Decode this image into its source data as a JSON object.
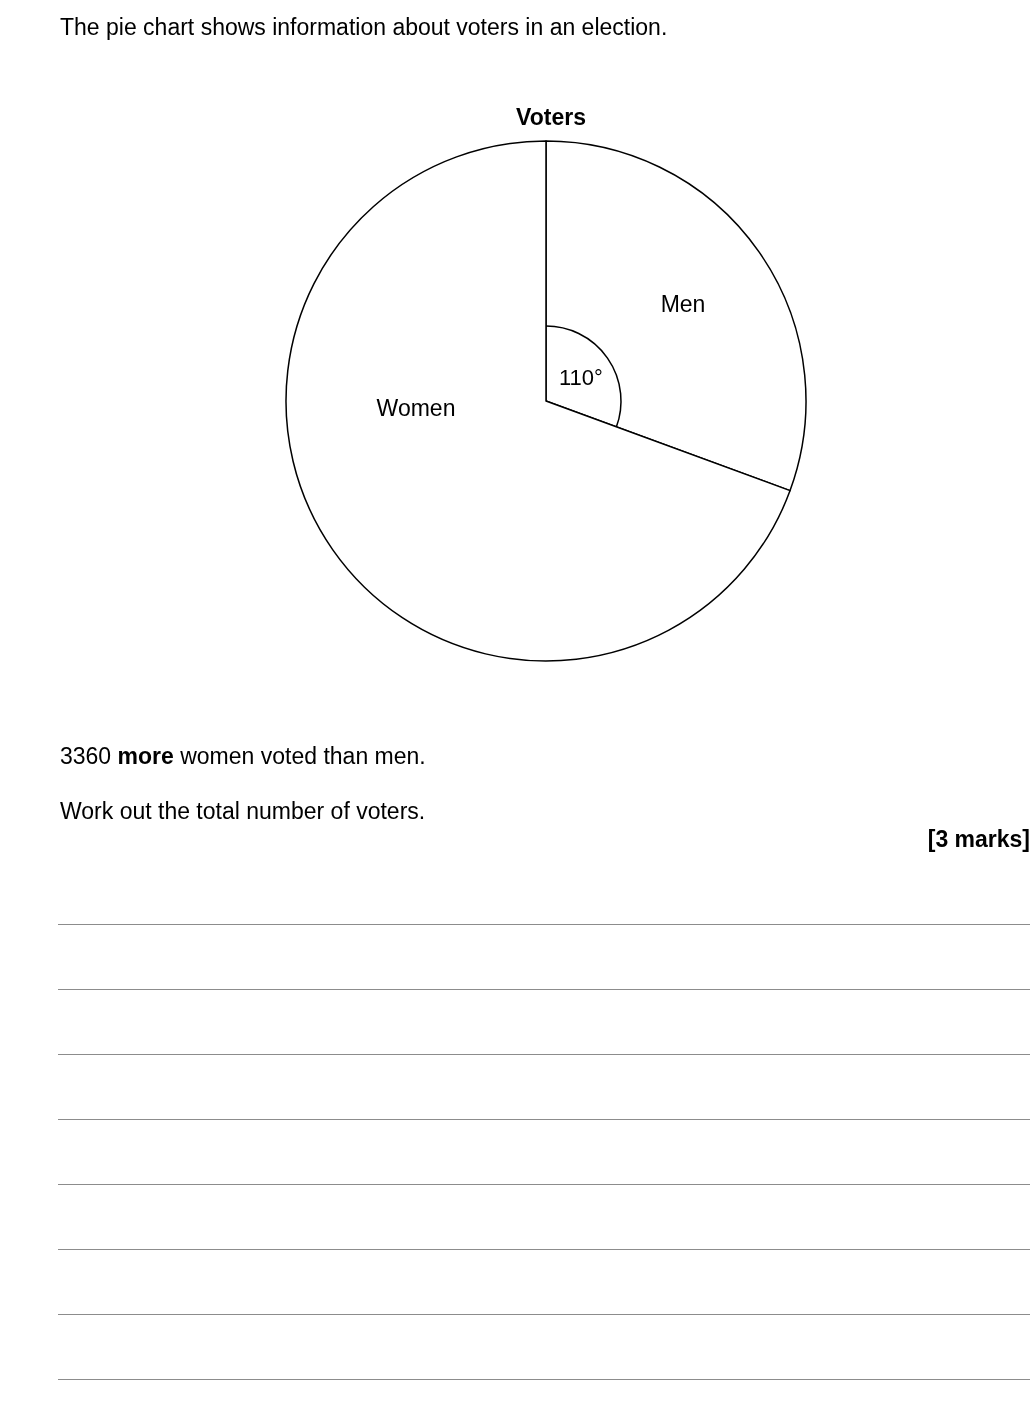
{
  "chart_data": {
    "type": "pie",
    "title": "Voters",
    "subtitle": "The pie chart shows information about voters in an election.",
    "categories": [
      "Men",
      "Women"
    ],
    "values": [
      30.6,
      69.4
    ],
    "colors": [
      "#ffffff",
      "#ffffff"
    ],
    "annotations": [
      "110°",
      "3360 more women voted than men.",
      "Work out the total number of voters.",
      "[3 marks]"
    ]
  }
}
